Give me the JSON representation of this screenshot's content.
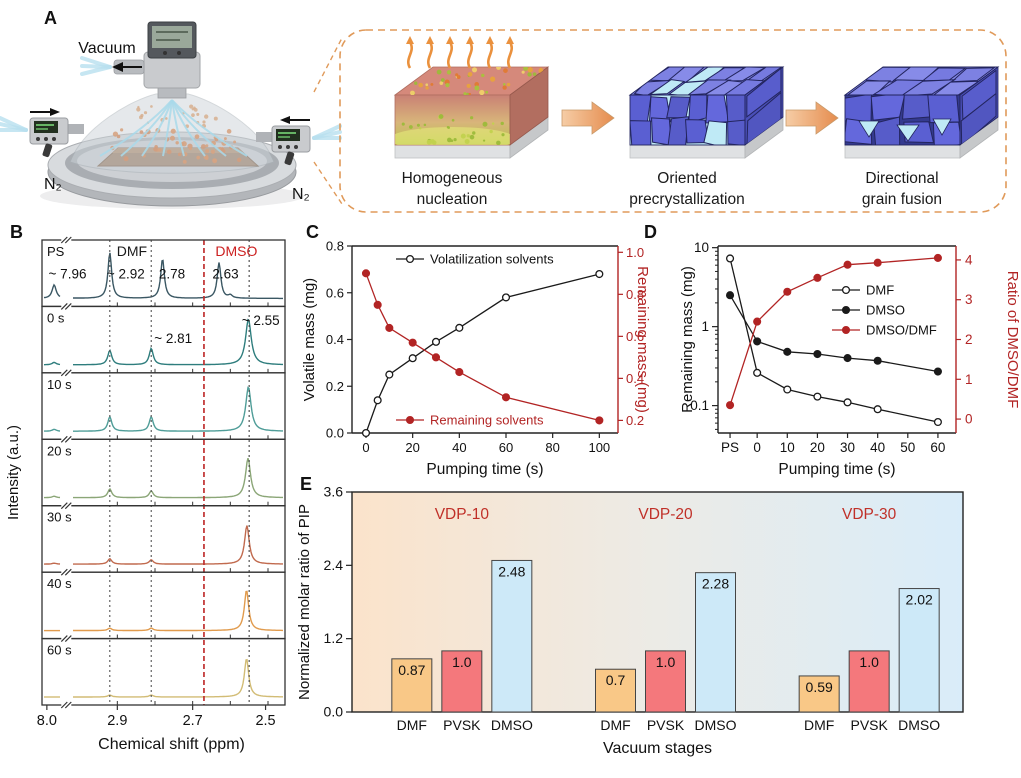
{
  "panel_labels": {
    "a": "A",
    "b": "B",
    "c": "C",
    "d": "D",
    "e": "E"
  },
  "panel_a": {
    "vacuum_label": "Vacuum",
    "n2_left": "N₂",
    "n2_right": "N₂",
    "stages": [
      {
        "line1": "Homogeneous",
        "line2": "nucleation"
      },
      {
        "line1": "Oriented",
        "line2": "precrystallization"
      },
      {
        "line1": "Directional",
        "line2": "grain fusion"
      }
    ]
  },
  "chart_data": {
    "panel_b": {
      "type": "line",
      "xlabel": "Chemical shift (ppm)",
      "ylabel": "Intensity (a.u.)",
      "x_ticks": [
        {
          "label": "8.0",
          "fx": 0.02
        },
        {
          "label": "2.9",
          "fx": 0.31
        },
        {
          "label": "2.7",
          "fx": 0.62
        },
        {
          "label": "2.5",
          "fx": 0.92
        }
      ],
      "axis_break": true,
      "species_labels": [
        {
          "text": "DMF",
          "fx": 0.37,
          "color": "#1a1a1a"
        },
        {
          "text": "DMSO",
          "fx": 0.8,
          "color": "#cc2020"
        }
      ],
      "guides": [
        {
          "ppm": 2.92,
          "color": "#555555",
          "dash": "dotted"
        },
        {
          "ppm": 2.81,
          "color": "#555555",
          "dash": "dotted"
        },
        {
          "ppm": 2.67,
          "color": "#c03030",
          "dash": "dashed"
        },
        {
          "ppm": 2.55,
          "color": "#444444",
          "dash": "dotted"
        }
      ],
      "rows": [
        {
          "label": "PS",
          "color": "#3a5763",
          "peaks": [
            [
              7.96,
              0.28,
              2.4
            ],
            [
              2.92,
              0.95,
              2.2
            ],
            [
              2.78,
              0.82,
              2.2
            ],
            [
              2.63,
              0.74,
              2.2
            ],
            [
              2.6,
              0.06,
              2.4
            ]
          ],
          "ann": [
            {
              "t": "~ 7.96",
              "fx": 0.105,
              "fy": 0.58
            },
            {
              "t": "~ 2.92",
              "fx": 0.345,
              "fy": 0.58
            },
            {
              "t": "2.78",
              "fx": 0.535,
              "fy": 0.58
            },
            {
              "t": "2.63",
              "fx": 0.755,
              "fy": 0.58
            }
          ]
        },
        {
          "label": "0 s",
          "color": "#2e7d7d",
          "peaks": [
            [
              7.96,
              0.05,
              2.4
            ],
            [
              2.92,
              0.3,
              2.4
            ],
            [
              2.81,
              0.34,
              2.4
            ],
            [
              2.552,
              0.95,
              3.4
            ]
          ],
          "ann": [
            {
              "t": "~ 2.81",
              "fx": 0.54,
              "fy": 0.55
            },
            {
              "t": "~ 2.55",
              "fx": 0.9,
              "fy": 0.28
            }
          ]
        },
        {
          "label": "10 s",
          "color": "#4f9d98",
          "peaks": [
            [
              7.96,
              0.04,
              2.4
            ],
            [
              2.92,
              0.3,
              2.4
            ],
            [
              2.81,
              0.3,
              2.4
            ],
            [
              2.552,
              0.92,
              3.2
            ]
          ],
          "ann": []
        },
        {
          "label": "20 s",
          "color": "#8ba677",
          "peaks": [
            [
              7.96,
              0.03,
              2.4
            ],
            [
              2.92,
              0.18,
              2.4
            ],
            [
              2.81,
              0.14,
              2.4
            ],
            [
              2.553,
              0.82,
              3.0
            ]
          ],
          "ann": []
        },
        {
          "label": "30 s",
          "color": "#c16a4e",
          "peaks": [
            [
              7.96,
              0.02,
              2.4
            ],
            [
              2.92,
              0.11,
              2.4
            ],
            [
              2.81,
              0.09,
              2.4
            ],
            [
              2.556,
              0.8,
              2.8
            ]
          ],
          "ann": []
        },
        {
          "label": "40 s",
          "color": "#e19b4d",
          "peaks": [
            [
              2.92,
              0.05,
              2.4
            ],
            [
              2.81,
              0.05,
              2.4
            ],
            [
              2.557,
              0.84,
              2.6
            ]
          ],
          "ann": []
        },
        {
          "label": "60 s",
          "color": "#d2bc75",
          "peaks": [
            [
              2.92,
              0.04,
              2.4
            ],
            [
              2.81,
              0.04,
              2.4
            ],
            [
              2.557,
              0.8,
              2.6
            ]
          ],
          "ann": []
        }
      ]
    },
    "panel_c": {
      "type": "line",
      "xlabel": "Pumping time (s)",
      "ylabel_left": "Volatile mass (mg)",
      "ylabel_right": "Remaining mass (mg)",
      "xlim": [
        -6,
        108
      ],
      "xticks": [
        "0",
        "20",
        "40",
        "60",
        "80",
        "100"
      ],
      "ylim_left": [
        0,
        0.8
      ],
      "yticks_left": [
        "0.0",
        "0.2",
        "0.4",
        "0.6",
        "0.8"
      ],
      "ylim_right": [
        0.14,
        1.03
      ],
      "yticks_right": [
        "0.2",
        "0.4",
        "0.6",
        "0.8",
        "1.0"
      ],
      "x": [
        0,
        5,
        10,
        20,
        30,
        40,
        60,
        100
      ],
      "series": [
        {
          "name": "Volatilization solvents",
          "axis": "left",
          "color": "#1a1a1a",
          "marker": "open",
          "values": [
            0.0,
            0.14,
            0.25,
            0.32,
            0.39,
            0.45,
            0.58,
            0.68
          ]
        },
        {
          "name": "Remaining solvents",
          "axis": "right",
          "color": "#b22424",
          "marker": "filled",
          "values": [
            0.9,
            0.75,
            0.64,
            0.57,
            0.5,
            0.43,
            0.31,
            0.2
          ]
        }
      ]
    },
    "panel_d": {
      "type": "line",
      "xlabel": "Pumping time (s)",
      "ylabel_left": "Remaining mass (mg)",
      "ylabel_right": "Ratio of DMSO/DMF",
      "yscale_left": "log",
      "ylim_left": [
        0.045,
        10.5
      ],
      "yticks_left": [
        "0.1",
        "1",
        "10"
      ],
      "ylim_right": [
        -0.35,
        4.35
      ],
      "yticks_right": [
        "0",
        "1",
        "2",
        "3",
        "4"
      ],
      "xtick_labels": [
        "PS",
        "0",
        "10",
        "20",
        "30",
        "40",
        "50",
        "60"
      ],
      "x": [
        "PS",
        0,
        10,
        20,
        30,
        40,
        60
      ],
      "series": [
        {
          "name": "DMF",
          "axis": "left",
          "color": "#1a1a1a",
          "marker": "open",
          "values": [
            7.3,
            0.26,
            0.16,
            0.13,
            0.11,
            0.09,
            0.062
          ]
        },
        {
          "name": "DMSO",
          "axis": "left",
          "color": "#1a1a1a",
          "marker": "filled",
          "values": [
            2.5,
            0.65,
            0.48,
            0.45,
            0.4,
            0.37,
            0.27
          ]
        },
        {
          "name": "DMSO/DMF",
          "axis": "right",
          "color": "#b22424",
          "marker": "filled",
          "values": [
            0.35,
            2.45,
            3.2,
            3.55,
            3.88,
            3.93,
            4.05
          ]
        }
      ]
    },
    "panel_e": {
      "type": "bar",
      "xlabel": "Vacuum stages",
      "ylabel": "Normalized molar ratio of PIP",
      "ylim": [
        0,
        3.6
      ],
      "yticks": [
        "0.0",
        "1.2",
        "2.4",
        "3.6"
      ],
      "group_label_color": "#c03028",
      "bar_categories": [
        "DMF",
        "PVSK",
        "DMSO"
      ],
      "bar_colors": [
        "#f9c887",
        "#f4787c",
        "#cde9f8"
      ],
      "background_gradient": [
        "#fbe3cb",
        "#ecebe6",
        "#d9ecf9"
      ],
      "groups": [
        {
          "name": "VDP-10",
          "values": [
            0.87,
            1.0,
            2.48
          ],
          "labels": [
            "0.87",
            "1.0",
            "2.48"
          ]
        },
        {
          "name": "VDP-20",
          "values": [
            0.7,
            1.0,
            2.28
          ],
          "labels": [
            "0.7",
            "1.0",
            "2.28"
          ]
        },
        {
          "name": "VDP-30",
          "values": [
            0.59,
            1.0,
            2.02
          ],
          "labels": [
            "0.59",
            "1.0",
            "2.02"
          ]
        }
      ]
    }
  }
}
